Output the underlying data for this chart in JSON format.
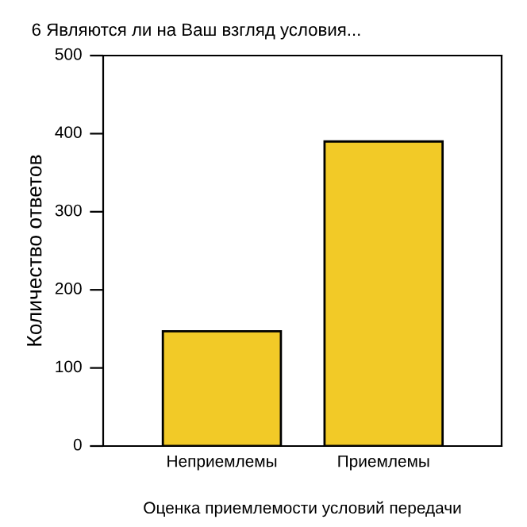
{
  "chart_data": {
    "type": "bar",
    "title": "6 Являются ли на Ваш взгляд условия...",
    "xlabel": "Оценка приемлемости условий передачи",
    "ylabel": "Количество ответов",
    "categories": [
      "Неприемлемы",
      "Приемлемы"
    ],
    "values": [
      147,
      390
    ],
    "color": "#f2ca27",
    "ylim": [
      0,
      500
    ],
    "yticks": [
      0,
      100,
      200,
      300,
      400,
      500
    ],
    "grid": false
  }
}
